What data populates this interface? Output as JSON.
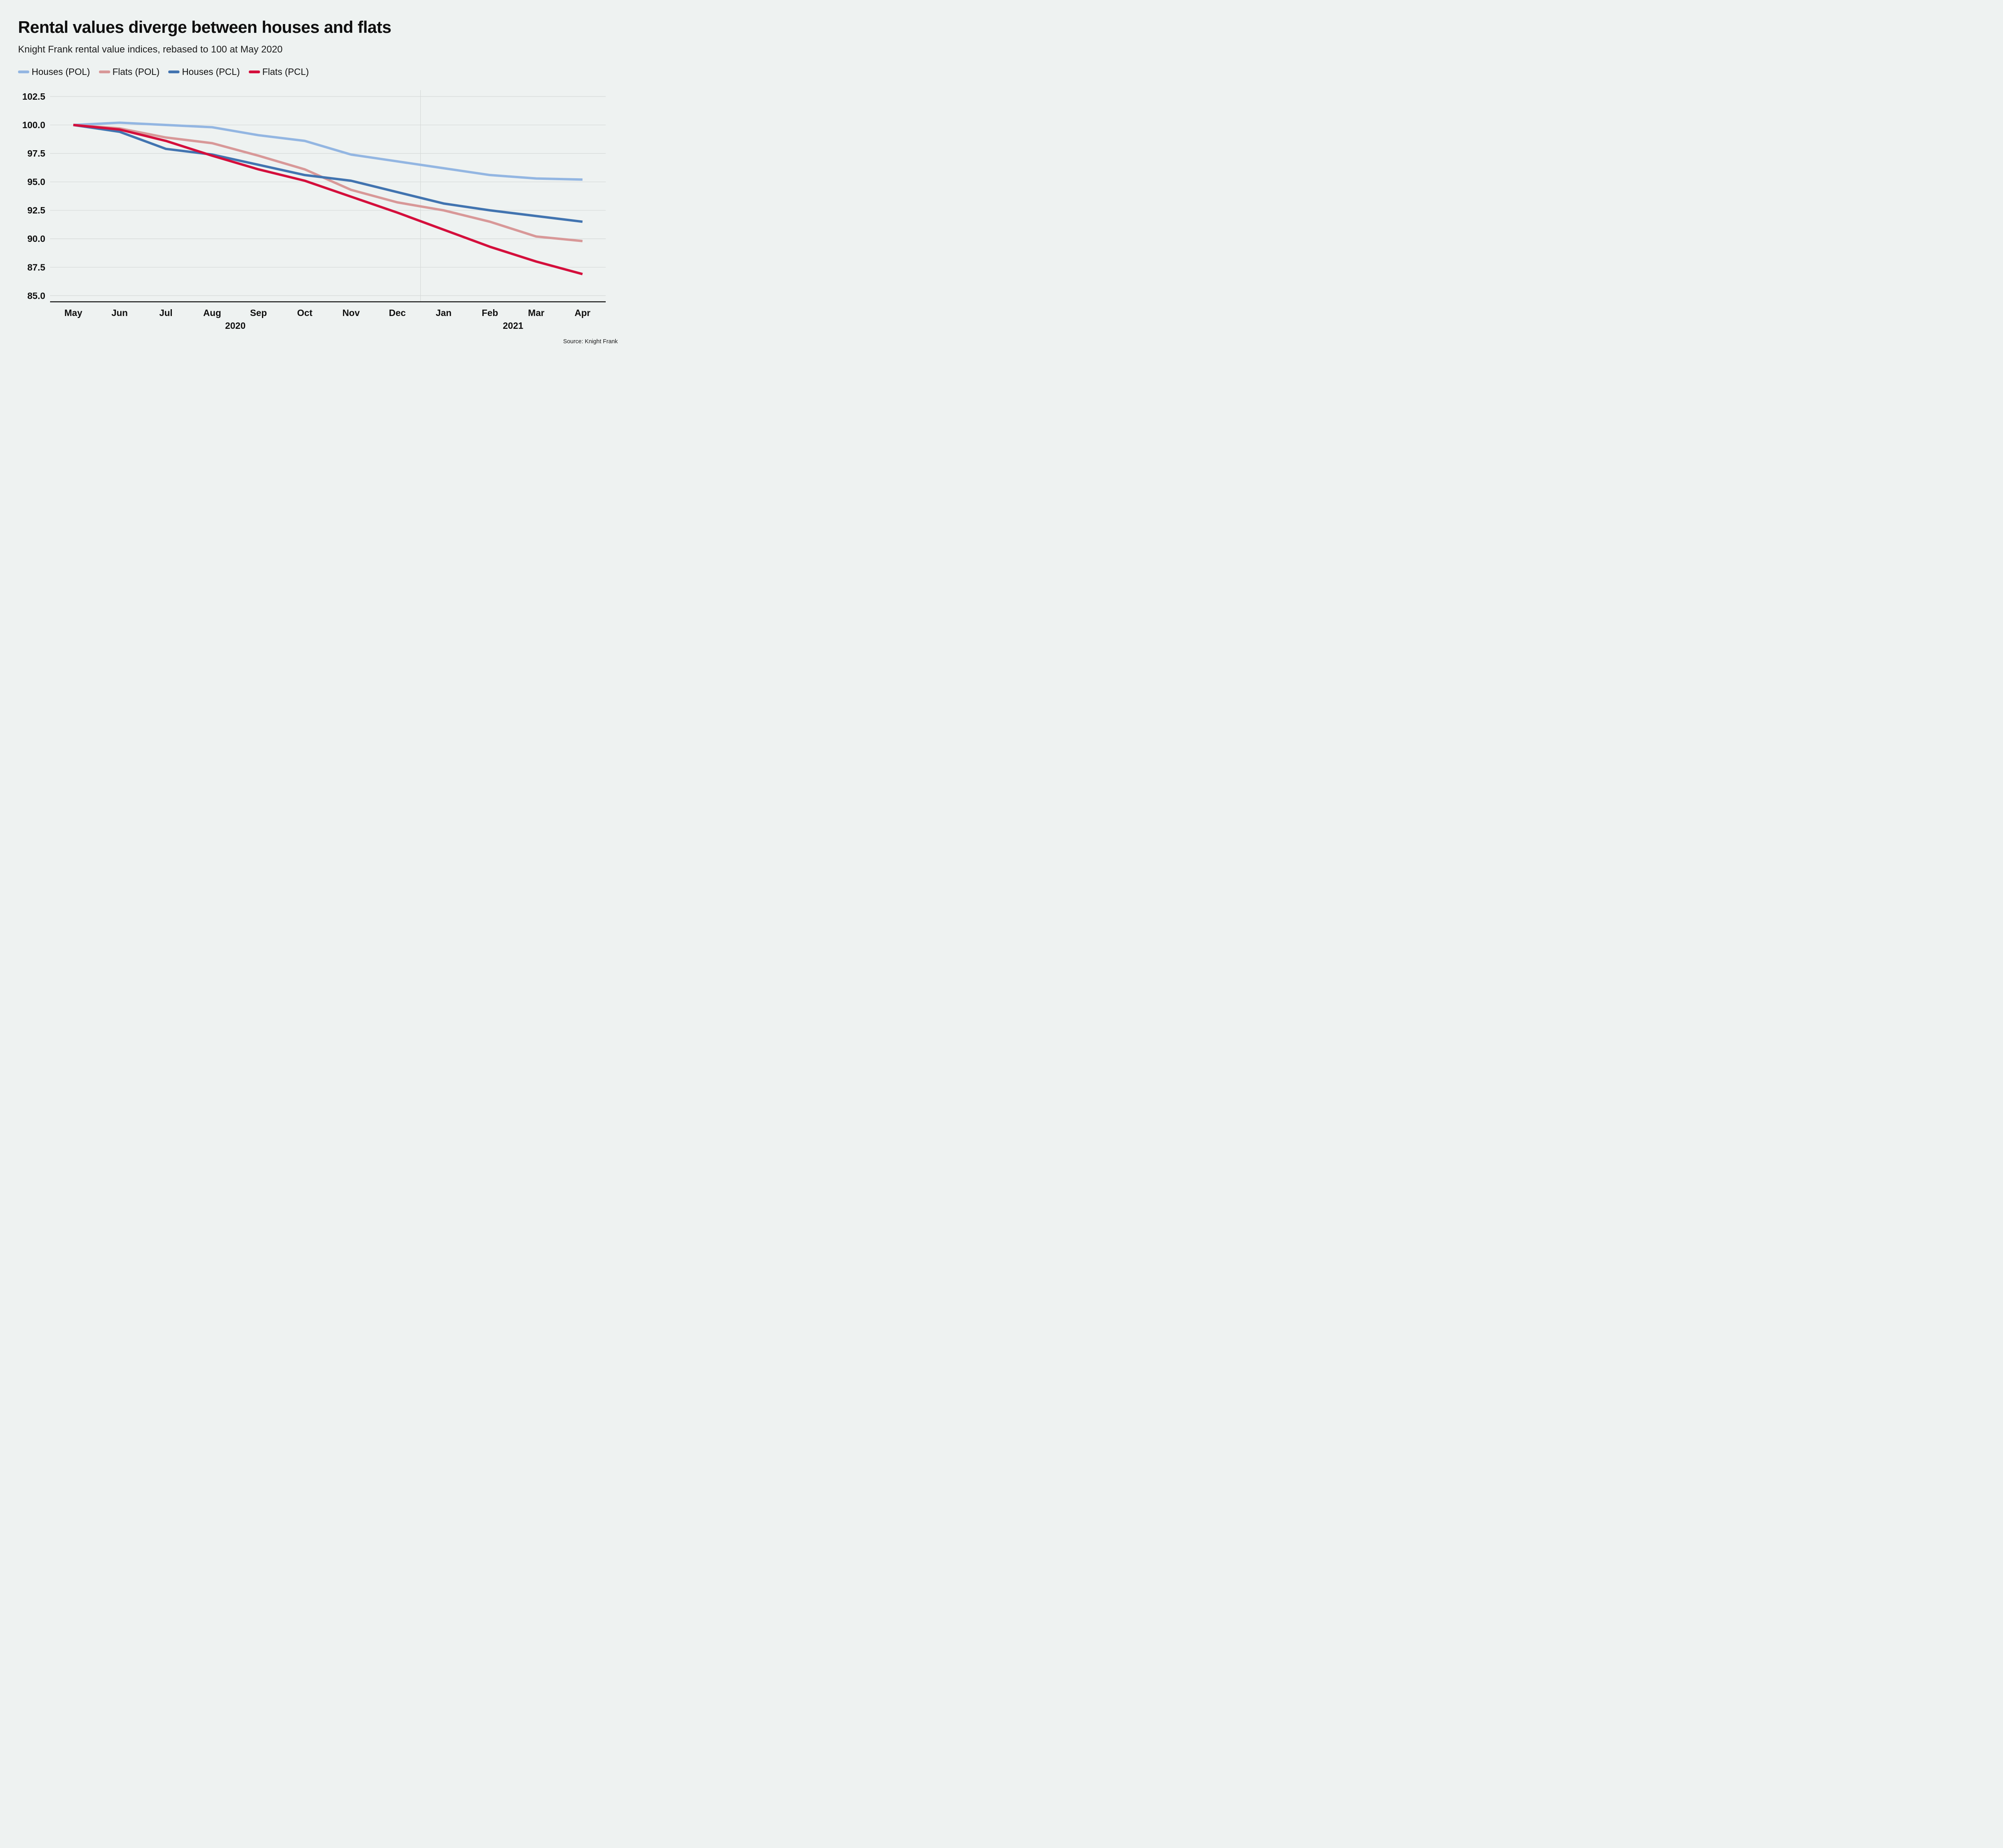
{
  "header": {
    "title": "Rental values diverge between houses and flats",
    "subtitle": "Knight Frank rental value indices, rebased to 100 at May 2020"
  },
  "legend": {
    "items": [
      {
        "label": "Houses (POL)",
        "color": "#93b6e2"
      },
      {
        "label": "Flats (POL)",
        "color": "#d89898"
      },
      {
        "label": "Houses (PCL)",
        "color": "#4274b0"
      },
      {
        "label": "Flats (PCL)",
        "color": "#d40f3c"
      }
    ]
  },
  "chart_data": {
    "type": "line",
    "categories": [
      "May",
      "Jun",
      "Jul",
      "Aug",
      "Sep",
      "Oct",
      "Nov",
      "Dec",
      "Jan",
      "Feb",
      "Mar",
      "Apr"
    ],
    "year_labels": [
      {
        "label": "2020",
        "from_month_index": 0,
        "to_month_index": 7
      },
      {
        "label": "2021",
        "from_month_index": 8,
        "to_month_index": 11
      }
    ],
    "year_divider_between_month_indices": [
      7,
      8
    ],
    "series": [
      {
        "name": "Houses (POL)",
        "color": "#93b6e2",
        "values": [
          100.0,
          100.2,
          100.0,
          99.8,
          99.1,
          98.6,
          97.4,
          96.8,
          96.2,
          95.6,
          95.3,
          95.2
        ]
      },
      {
        "name": "Flats (POL)",
        "color": "#d89898",
        "values": [
          100.0,
          99.7,
          98.9,
          98.4,
          97.3,
          96.1,
          94.3,
          93.2,
          92.5,
          91.5,
          90.2,
          89.8
        ]
      },
      {
        "name": "Houses (PCL)",
        "color": "#4274b0",
        "values": [
          100.0,
          99.4,
          97.9,
          97.4,
          96.5,
          95.6,
          95.1,
          94.1,
          93.1,
          92.5,
          92.0,
          91.5
        ]
      },
      {
        "name": "Flats (PCL)",
        "color": "#d40f3c",
        "values": [
          100.0,
          99.6,
          98.6,
          97.3,
          96.1,
          95.1,
          93.7,
          92.3,
          90.8,
          89.3,
          88.0,
          86.9
        ]
      }
    ],
    "yticks": [
      102.5,
      100.0,
      97.5,
      95.0,
      92.5,
      90.0,
      87.5,
      85.0
    ],
    "ylim": [
      84.4,
      103.1
    ],
    "grid": "horizontal",
    "legend_position": "top",
    "colors": {
      "background": "#eef2f1",
      "gridline": "#d6dad9",
      "axis": "#141414",
      "tick_text": "#0f0f0f"
    }
  },
  "footer": {
    "source": "Source: Knight Frank"
  }
}
